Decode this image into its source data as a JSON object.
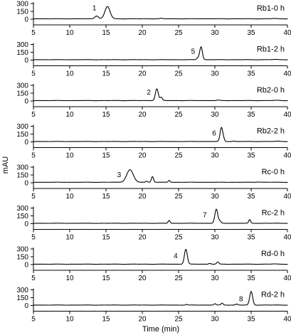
{
  "chart_data": {
    "type": "line",
    "xlabel": "Time (min)",
    "ylabel": "mAU",
    "xlim": [
      5,
      40
    ],
    "ylim": [
      0,
      300
    ],
    "xticks": [
      5,
      10,
      15,
      20,
      25,
      30,
      35,
      40
    ],
    "yticks": [
      0,
      150,
      300
    ],
    "x_tick_labels": [
      "5",
      "10",
      "15",
      "20",
      "25",
      "30",
      "35",
      "40"
    ],
    "y_tick_labels": [
      "0",
      "150",
      "300"
    ],
    "panels": [
      {
        "name": "Rb1-0 h",
        "peak_label": "1",
        "label_x": 13.4,
        "label_y": 170,
        "baseline": 8,
        "peaks": [
          {
            "x": 13.7,
            "height": 55,
            "width": 0.25
          },
          {
            "x": 15.2,
            "height": 235,
            "width": 0.35
          },
          {
            "x": 22.6,
            "height": 10,
            "width": 0.15
          },
          {
            "x": 38.2,
            "height": 6,
            "width": 0.3
          }
        ]
      },
      {
        "name": "Rb1-2 h",
        "peak_label": "5",
        "label_x": 27.0,
        "label_y": 120,
        "baseline": 8,
        "peaks": [
          {
            "x": 27.7,
            "height": 35,
            "width": 0.18
          },
          {
            "x": 28.1,
            "height": 245,
            "width": 0.18
          },
          {
            "x": 38.3,
            "height": 5,
            "width": 0.3
          }
        ]
      },
      {
        "name": "Rb2-0 h",
        "peak_label": "2",
        "label_x": 20.9,
        "label_y": 120,
        "baseline": 8,
        "peaks": [
          {
            "x": 22.0,
            "height": 225,
            "width": 0.2
          },
          {
            "x": 22.6,
            "height": 60,
            "width": 0.16
          },
          {
            "x": 30.5,
            "height": 8,
            "width": 0.2
          },
          {
            "x": 38.5,
            "height": 6,
            "width": 0.3
          }
        ]
      },
      {
        "name": "Rb2-2 h",
        "peak_label": "6",
        "label_x": 29.9,
        "label_y": 120,
        "baseline": 8,
        "peaks": [
          {
            "x": 30.9,
            "height": 265,
            "width": 0.18
          },
          {
            "x": 31.2,
            "height": 40,
            "width": 0.14
          },
          {
            "x": 32.6,
            "height": 8,
            "width": 0.15
          },
          {
            "x": 38.7,
            "height": 6,
            "width": 0.3
          }
        ]
      },
      {
        "name": "Rc-0 h",
        "peak_label": "3",
        "label_x": 16.8,
        "label_y": 110,
        "baseline": 10,
        "peaks": [
          {
            "x": 18.3,
            "height": 240,
            "width": 0.45
          },
          {
            "x": 20.6,
            "height": 18,
            "width": 0.15
          },
          {
            "x": 21.4,
            "height": 110,
            "width": 0.15
          },
          {
            "x": 23.7,
            "height": 35,
            "width": 0.12
          },
          {
            "x": 36.0,
            "height": 6,
            "width": 0.3
          }
        ]
      },
      {
        "name": "Rc-2 h",
        "peak_label": "7",
        "label_x": 28.6,
        "label_y": 120,
        "baseline": 8,
        "peaks": [
          {
            "x": 23.7,
            "height": 55,
            "width": 0.13
          },
          {
            "x": 30.2,
            "height": 270,
            "width": 0.2
          },
          {
            "x": 30.7,
            "height": 40,
            "width": 0.15
          },
          {
            "x": 34.8,
            "height": 70,
            "width": 0.13
          }
        ]
      },
      {
        "name": "Rd-0 h",
        "peak_label": "4",
        "label_x": 24.6,
        "label_y": 120,
        "baseline": 8,
        "peaks": [
          {
            "x": 26.0,
            "height": 285,
            "width": 0.2
          },
          {
            "x": 29.3,
            "height": 15,
            "width": 0.15
          },
          {
            "x": 30.4,
            "height": 40,
            "width": 0.15
          },
          {
            "x": 38.2,
            "height": 5,
            "width": 0.3
          }
        ]
      },
      {
        "name": "Rd-2 h",
        "peak_label": "8",
        "label_x": 33.6,
        "label_y": 80,
        "baseline": 8,
        "peaks": [
          {
            "x": 26.1,
            "height": 12,
            "width": 0.12
          },
          {
            "x": 30.0,
            "height": 25,
            "width": 0.14
          },
          {
            "x": 31.0,
            "height": 35,
            "width": 0.14
          },
          {
            "x": 33.0,
            "height": 20,
            "width": 0.15
          },
          {
            "x": 35.0,
            "height": 260,
            "width": 0.2
          }
        ]
      }
    ]
  }
}
